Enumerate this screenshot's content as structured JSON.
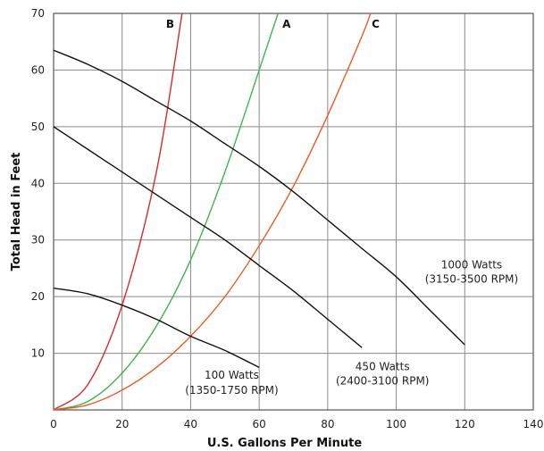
{
  "chart_data": {
    "type": "line",
    "xlabel": "U.S. Gallons Per Minute",
    "ylabel": "Total Head in Feet",
    "xlim": [
      0,
      140
    ],
    "ylim": [
      0,
      70
    ],
    "xticks": [
      0,
      20,
      40,
      60,
      80,
      100,
      120,
      140
    ],
    "yticks": [
      10,
      20,
      30,
      40,
      50,
      60,
      70
    ],
    "grid": true,
    "series": [
      {
        "label": "B",
        "color": "#d42a2a",
        "x": [
          0,
          10,
          20,
          30,
          37.5
        ],
        "y": [
          0,
          4.5,
          18.5,
          42,
          70
        ]
      },
      {
        "label": "A",
        "color": "#3fb54a",
        "x": [
          0,
          10,
          20,
          30,
          40,
          50,
          60,
          65.5
        ],
        "y": [
          0,
          1.5,
          6.5,
          14.8,
          26.5,
          42,
          60,
          70
        ]
      },
      {
        "label": "C",
        "color": "#ee5a24",
        "x": [
          0,
          10,
          20,
          30,
          40,
          50,
          60,
          70,
          80,
          90,
          92.5
        ],
        "y": [
          0,
          0.9,
          3.5,
          7.5,
          13,
          20,
          29,
          39.5,
          52,
          66,
          70
        ]
      },
      {
        "label": "100 Watts (1350-1750 RPM)",
        "color": "#111111",
        "x": [
          0,
          10,
          20,
          30,
          40,
          50,
          60
        ],
        "y": [
          21.5,
          20.5,
          18.5,
          16,
          13,
          10.5,
          7.5
        ]
      },
      {
        "label": "450 Watts (2400-3100 RPM)",
        "color": "#111111",
        "x": [
          0,
          10,
          20,
          30,
          40,
          50,
          60,
          70,
          80,
          90
        ],
        "y": [
          50,
          46,
          42,
          38,
          34,
          30,
          25.5,
          21,
          16,
          11
        ]
      },
      {
        "label": "1000 Watts (3150-3500 RPM)",
        "color": "#111111",
        "x": [
          0,
          10,
          20,
          30,
          40,
          50,
          60,
          70,
          80,
          90,
          100,
          110,
          120
        ],
        "y": [
          63.5,
          61,
          58,
          54.5,
          51,
          47,
          43,
          38.5,
          33.5,
          28.5,
          23.5,
          17.5,
          11.5
        ]
      }
    ],
    "annotations": [
      {
        "text": "B",
        "x": 34,
        "y": 67.5,
        "style": "curve-label"
      },
      {
        "text": "A",
        "x": 68,
        "y": 67.5,
        "style": "curve-label"
      },
      {
        "text": "C",
        "x": 94,
        "y": 67.5,
        "style": "curve-label"
      },
      {
        "text": "1000 Watts",
        "x": 122,
        "y": 25,
        "style": "annot"
      },
      {
        "text": "(3150-3500 RPM)",
        "x": 122,
        "y": 22.5,
        "style": "annot"
      },
      {
        "text": "450 Watts",
        "x": 96,
        "y": 7,
        "style": "annot"
      },
      {
        "text": "(2400-3100 RPM)",
        "x": 96,
        "y": 4.5,
        "style": "annot"
      },
      {
        "text": "100 Watts",
        "x": 52,
        "y": 5.5,
        "style": "annot"
      },
      {
        "text": "(1350-1750 RPM)",
        "x": 52,
        "y": 2.8,
        "style": "annot"
      }
    ]
  }
}
